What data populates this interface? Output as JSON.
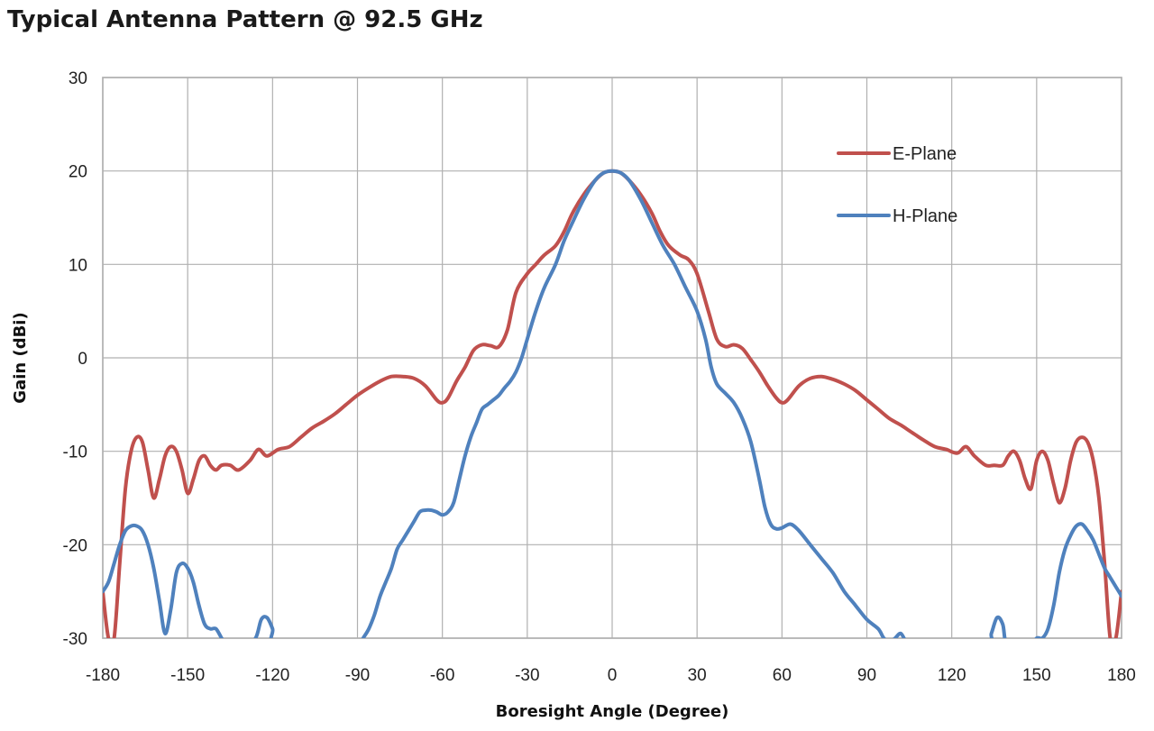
{
  "chart_data": {
    "type": "line",
    "title": "Typical Antenna Pattern @ 92.5 GHz",
    "xlabel": "Boresight Angle (Degree)",
    "ylabel": "Gain (dBi)",
    "xlim": [
      -180,
      180
    ],
    "ylim": [
      -30,
      30
    ],
    "x_ticks": [
      -180,
      -150,
      -120,
      -90,
      -60,
      -30,
      0,
      30,
      60,
      90,
      120,
      150,
      180
    ],
    "y_ticks": [
      30,
      20,
      10,
      0,
      -10,
      -20,
      -30
    ],
    "grid": true,
    "legend_position": "top-right",
    "series": [
      {
        "name": "E-Plane",
        "color": "#c0504d",
        "points": [
          [
            -180,
            -25
          ],
          [
            -178,
            -30
          ],
          [
            -176,
            -30
          ],
          [
            -174,
            -22
          ],
          [
            -172,
            -14
          ],
          [
            -170,
            -10
          ],
          [
            -168,
            -8.5
          ],
          [
            -166,
            -9
          ],
          [
            -164,
            -12
          ],
          [
            -162,
            -15
          ],
          [
            -160,
            -13
          ],
          [
            -158,
            -10.5
          ],
          [
            -156,
            -9.5
          ],
          [
            -154,
            -10
          ],
          [
            -152,
            -12
          ],
          [
            -150,
            -14.5
          ],
          [
            -148,
            -13
          ],
          [
            -146,
            -11
          ],
          [
            -144,
            -10.5
          ],
          [
            -142,
            -11.5
          ],
          [
            -140,
            -12
          ],
          [
            -138,
            -11.5
          ],
          [
            -135,
            -11.5
          ],
          [
            -132,
            -12
          ],
          [
            -128,
            -11
          ],
          [
            -125,
            -9.8
          ],
          [
            -122,
            -10.5
          ],
          [
            -118,
            -9.8
          ],
          [
            -114,
            -9.5
          ],
          [
            -110,
            -8.5
          ],
          [
            -106,
            -7.5
          ],
          [
            -102,
            -6.8
          ],
          [
            -98,
            -6
          ],
          [
            -94,
            -5
          ],
          [
            -90,
            -4
          ],
          [
            -86,
            -3.2
          ],
          [
            -82,
            -2.5
          ],
          [
            -78,
            -2
          ],
          [
            -74,
            -2
          ],
          [
            -70,
            -2.2
          ],
          [
            -66,
            -3
          ],
          [
            -62,
            -4.5
          ],
          [
            -60,
            -4.8
          ],
          [
            -58,
            -4.3
          ],
          [
            -55,
            -2.5
          ],
          [
            -52,
            -1
          ],
          [
            -49,
            0.8
          ],
          [
            -46,
            1.4
          ],
          [
            -43,
            1.3
          ],
          [
            -40,
            1.2
          ],
          [
            -37,
            3
          ],
          [
            -34,
            7
          ],
          [
            -30,
            9
          ],
          [
            -27,
            10
          ],
          [
            -24,
            11
          ],
          [
            -20,
            12
          ],
          [
            -17,
            13.5
          ],
          [
            -14,
            15.5
          ],
          [
            -10,
            17.5
          ],
          [
            -6,
            19
          ],
          [
            -3,
            19.8
          ],
          [
            0,
            20
          ],
          [
            3,
            19.8
          ],
          [
            6,
            19
          ],
          [
            10,
            17.5
          ],
          [
            14,
            15.5
          ],
          [
            17,
            13.5
          ],
          [
            20,
            12
          ],
          [
            24,
            11
          ],
          [
            27,
            10.5
          ],
          [
            30,
            9
          ],
          [
            34,
            5
          ],
          [
            37,
            2
          ],
          [
            40,
            1.2
          ],
          [
            43,
            1.4
          ],
          [
            46,
            1
          ],
          [
            49,
            -0.2
          ],
          [
            52,
            -1.5
          ],
          [
            55,
            -3
          ],
          [
            58,
            -4.3
          ],
          [
            60,
            -4.8
          ],
          [
            62,
            -4.5
          ],
          [
            66,
            -3
          ],
          [
            70,
            -2.2
          ],
          [
            74,
            -2
          ],
          [
            78,
            -2.3
          ],
          [
            82,
            -2.8
          ],
          [
            86,
            -3.5
          ],
          [
            90,
            -4.5
          ],
          [
            94,
            -5.5
          ],
          [
            98,
            -6.5
          ],
          [
            102,
            -7.2
          ],
          [
            106,
            -8
          ],
          [
            110,
            -8.8
          ],
          [
            114,
            -9.5
          ],
          [
            118,
            -9.8
          ],
          [
            122,
            -10.2
          ],
          [
            125,
            -9.5
          ],
          [
            128,
            -10.5
          ],
          [
            132,
            -11.5
          ],
          [
            135,
            -11.5
          ],
          [
            138,
            -11.5
          ],
          [
            140,
            -10.5
          ],
          [
            142,
            -10
          ],
          [
            144,
            -11
          ],
          [
            146,
            -13
          ],
          [
            148,
            -14
          ],
          [
            150,
            -11
          ],
          [
            152,
            -10
          ],
          [
            154,
            -11
          ],
          [
            156,
            -13.5
          ],
          [
            158,
            -15.5
          ],
          [
            160,
            -14
          ],
          [
            162,
            -11
          ],
          [
            164,
            -9
          ],
          [
            166,
            -8.5
          ],
          [
            168,
            -9
          ],
          [
            170,
            -11
          ],
          [
            172,
            -15
          ],
          [
            174,
            -22
          ],
          [
            176,
            -30
          ],
          [
            178,
            -30
          ],
          [
            180,
            -25
          ]
        ]
      },
      {
        "name": "H-Plane",
        "color": "#4f81bd",
        "points": [
          [
            -180,
            -25
          ],
          [
            -178,
            -24
          ],
          [
            -176,
            -22
          ],
          [
            -174,
            -20
          ],
          [
            -172,
            -18.5
          ],
          [
            -170,
            -18
          ],
          [
            -168,
            -18
          ],
          [
            -166,
            -18.5
          ],
          [
            -164,
            -20
          ],
          [
            -162,
            -22.5
          ],
          [
            -160,
            -26
          ],
          [
            -158,
            -29.5
          ],
          [
            -156,
            -27
          ],
          [
            -154,
            -23
          ],
          [
            -152,
            -22
          ],
          [
            -150,
            -22.5
          ],
          [
            -148,
            -24
          ],
          [
            -146,
            -26.5
          ],
          [
            -144,
            -28.5
          ],
          [
            -142,
            -29
          ],
          [
            -140,
            -29
          ],
          [
            -138,
            -30
          ],
          [
            -136,
            -31
          ],
          [
            -134,
            -31
          ],
          [
            -130,
            -31
          ],
          [
            -126,
            -30
          ],
          [
            -124,
            -28
          ],
          [
            -122,
            -27.8
          ],
          [
            -120,
            -29
          ],
          [
            -118,
            -31
          ],
          [
            -90,
            -31
          ],
          [
            -88,
            -30
          ],
          [
            -86,
            -29
          ],
          [
            -84,
            -27.5
          ],
          [
            -82,
            -25.5
          ],
          [
            -80,
            -24
          ],
          [
            -78,
            -22.5
          ],
          [
            -76,
            -20.5
          ],
          [
            -74,
            -19.5
          ],
          [
            -72,
            -18.5
          ],
          [
            -70,
            -17.5
          ],
          [
            -68,
            -16.5
          ],
          [
            -66,
            -16.3
          ],
          [
            -64,
            -16.3
          ],
          [
            -62,
            -16.5
          ],
          [
            -60,
            -16.8
          ],
          [
            -58,
            -16.5
          ],
          [
            -56,
            -15.5
          ],
          [
            -54,
            -13
          ],
          [
            -52,
            -10.5
          ],
          [
            -50,
            -8.5
          ],
          [
            -48,
            -7
          ],
          [
            -46,
            -5.5
          ],
          [
            -44,
            -5
          ],
          [
            -42,
            -4.5
          ],
          [
            -40,
            -4
          ],
          [
            -38,
            -3.2
          ],
          [
            -36,
            -2.5
          ],
          [
            -34,
            -1.5
          ],
          [
            -32,
            0
          ],
          [
            -30,
            2
          ],
          [
            -27,
            5
          ],
          [
            -24,
            7.5
          ],
          [
            -20,
            10
          ],
          [
            -17,
            12.5
          ],
          [
            -14,
            14.5
          ],
          [
            -10,
            17
          ],
          [
            -6,
            19
          ],
          [
            -3,
            19.8
          ],
          [
            0,
            20
          ],
          [
            3,
            19.8
          ],
          [
            6,
            19
          ],
          [
            10,
            17
          ],
          [
            14,
            14.5
          ],
          [
            18,
            12
          ],
          [
            22,
            10
          ],
          [
            26,
            7.5
          ],
          [
            30,
            5
          ],
          [
            33,
            2
          ],
          [
            35,
            -1
          ],
          [
            37,
            -2.8
          ],
          [
            40,
            -3.8
          ],
          [
            43,
            -4.8
          ],
          [
            46,
            -6.5
          ],
          [
            49,
            -9
          ],
          [
            52,
            -13
          ],
          [
            54,
            -16
          ],
          [
            56,
            -17.8
          ],
          [
            58,
            -18.3
          ],
          [
            60,
            -18.2
          ],
          [
            63,
            -17.8
          ],
          [
            66,
            -18.5
          ],
          [
            70,
            -20
          ],
          [
            74,
            -21.5
          ],
          [
            78,
            -23
          ],
          [
            82,
            -25
          ],
          [
            86,
            -26.5
          ],
          [
            90,
            -28
          ],
          [
            94,
            -29
          ],
          [
            96,
            -30
          ],
          [
            98,
            -30.5
          ],
          [
            100,
            -30
          ],
          [
            102,
            -29.5
          ],
          [
            104,
            -30.5
          ],
          [
            106,
            -31
          ],
          [
            132,
            -31
          ],
          [
            134,
            -29.5
          ],
          [
            136,
            -27.8
          ],
          [
            138,
            -28.5
          ],
          [
            140,
            -31
          ],
          [
            148,
            -31
          ],
          [
            150,
            -30
          ],
          [
            152,
            -30
          ],
          [
            154,
            -29
          ],
          [
            156,
            -26.5
          ],
          [
            158,
            -23
          ],
          [
            160,
            -20.5
          ],
          [
            162,
            -19
          ],
          [
            164,
            -18
          ],
          [
            166,
            -17.8
          ],
          [
            168,
            -18.5
          ],
          [
            170,
            -19.5
          ],
          [
            172,
            -21
          ],
          [
            174,
            -22.5
          ],
          [
            176,
            -23.5
          ],
          [
            178,
            -24.5
          ],
          [
            180,
            -25.5
          ]
        ]
      }
    ]
  }
}
